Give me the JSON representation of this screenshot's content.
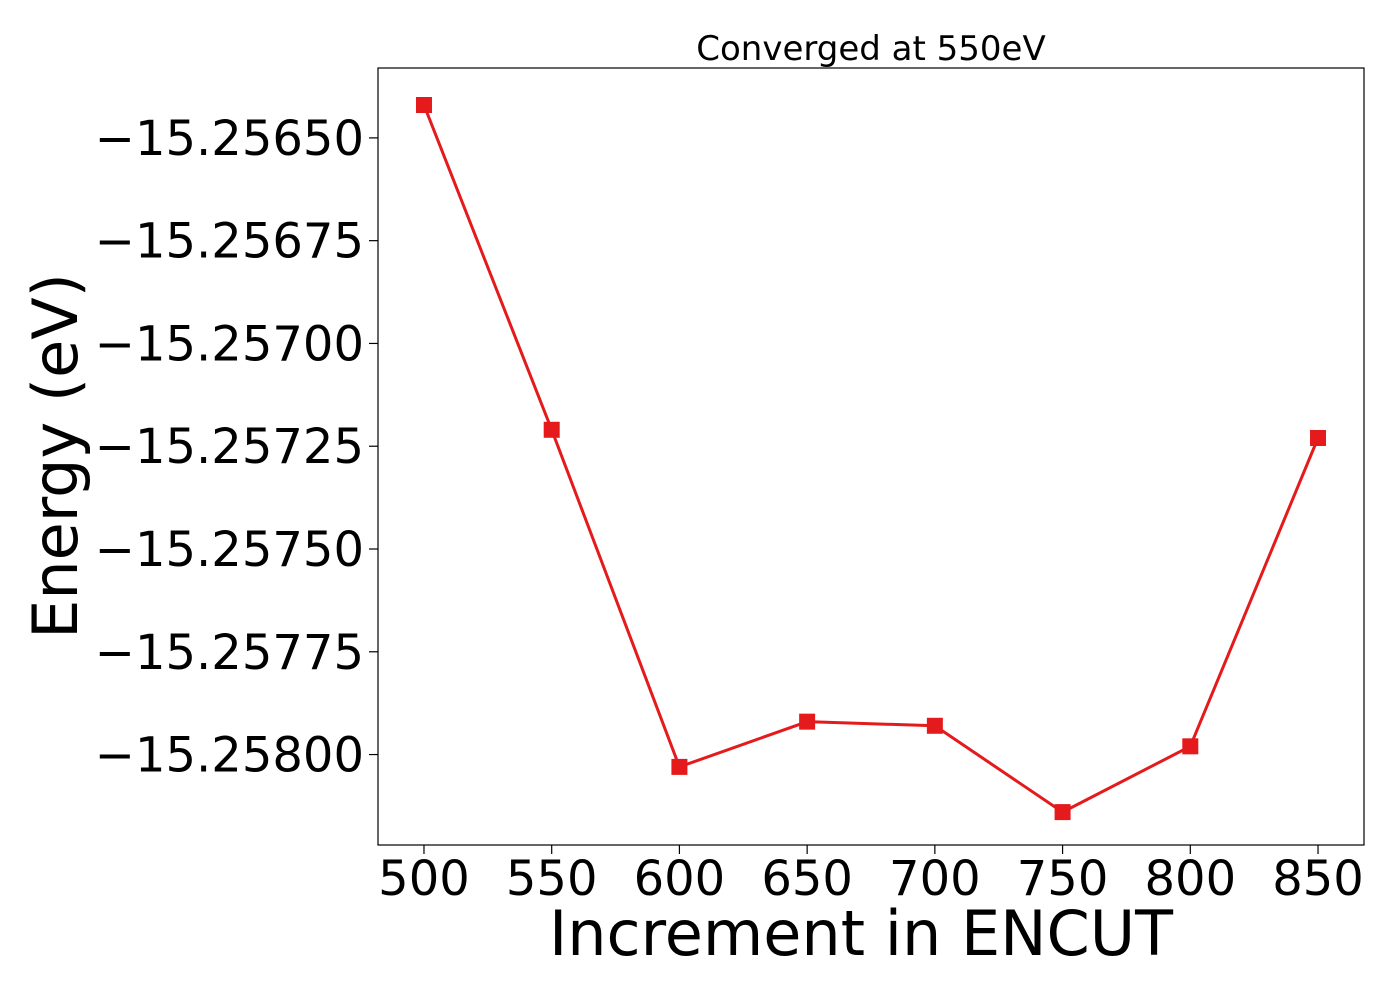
{
  "chart_data": {
    "type": "line",
    "title": "Converged at 550eV",
    "xlabel": "Increment in ENCUT",
    "ylabel": "Energy (eV)",
    "x": [
      500,
      550,
      600,
      650,
      700,
      750,
      800,
      850
    ],
    "series": [
      {
        "values": [
          -15.25642,
          -15.25721,
          -15.25803,
          -15.25792,
          -15.25793,
          -15.25814,
          -15.25798,
          -15.25723
        ],
        "color": "#e41a1c",
        "marker": "square"
      }
    ],
    "xlim": [
      482,
      868
    ],
    "ylim": [
      -15.25822,
      -15.25633
    ],
    "xticks": [
      500,
      550,
      600,
      650,
      700,
      750,
      800,
      850
    ],
    "xtick_labels": [
      "500",
      "550",
      "600",
      "650",
      "700",
      "750",
      "800",
      "850"
    ],
    "yticks": [
      -15.2565,
      -15.25675,
      -15.257,
      -15.25725,
      -15.2575,
      -15.25775,
      -15.258
    ],
    "ytick_labels": [
      "−15.25650",
      "−15.25675",
      "−15.25700",
      "−15.25725",
      "−15.25750",
      "−15.25775",
      "−15.25800"
    ],
    "grid": false,
    "legend": "none"
  }
}
